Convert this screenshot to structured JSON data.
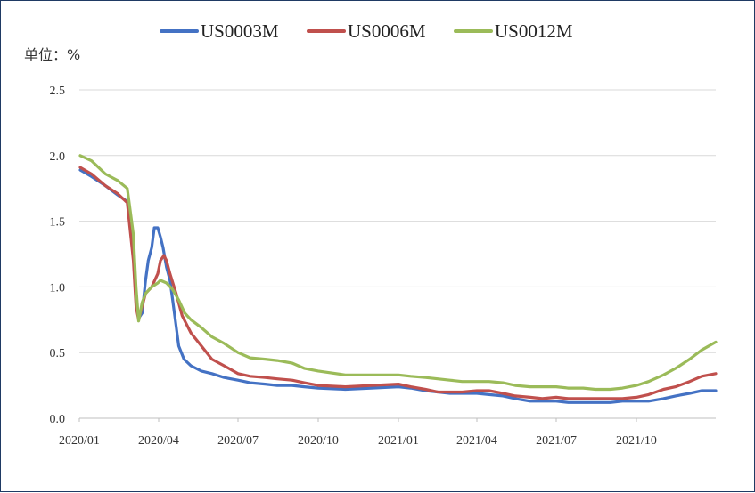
{
  "chart_data": {
    "type": "line",
    "unit_label": "单位：%",
    "ylim": [
      0,
      2.5
    ],
    "yticks": [
      "0.0",
      "0.5",
      "1.0",
      "1.5",
      "2.0",
      "2.5"
    ],
    "xlim": [
      "2020-01-01",
      "2021-12-31"
    ],
    "xticks": [
      {
        "date": "2020-01-01",
        "label": "2020/01"
      },
      {
        "date": "2020-04-01",
        "label": "2020/04"
      },
      {
        "date": "2020-07-01",
        "label": "2020/07"
      },
      {
        "date": "2020-10-01",
        "label": "2020/10"
      },
      {
        "date": "2021-01-01",
        "label": "2021/01"
      },
      {
        "date": "2021-04-01",
        "label": "2021/04"
      },
      {
        "date": "2021-07-01",
        "label": "2021/07"
      },
      {
        "date": "2021-10-01",
        "label": "2021/10"
      }
    ],
    "grid": true,
    "legend": "top",
    "series": [
      {
        "name": "US0003M",
        "color": "#4472c4",
        "points": [
          [
            "2020-01-02",
            1.89
          ],
          [
            "2020-01-15",
            1.84
          ],
          [
            "2020-01-31",
            1.77
          ],
          [
            "2020-02-14",
            1.7
          ],
          [
            "2020-02-25",
            1.65
          ],
          [
            "2020-03-03",
            1.3
          ],
          [
            "2020-03-06",
            0.9
          ],
          [
            "2020-03-09",
            0.76
          ],
          [
            "2020-03-13",
            0.8
          ],
          [
            "2020-03-17",
            1.05
          ],
          [
            "2020-03-20",
            1.2
          ],
          [
            "2020-03-24",
            1.3
          ],
          [
            "2020-03-27",
            1.45
          ],
          [
            "2020-03-31",
            1.45
          ],
          [
            "2020-04-03",
            1.38
          ],
          [
            "2020-04-06",
            1.3
          ],
          [
            "2020-04-10",
            1.15
          ],
          [
            "2020-04-14",
            1.05
          ],
          [
            "2020-04-17",
            0.9
          ],
          [
            "2020-04-21",
            0.7
          ],
          [
            "2020-04-24",
            0.55
          ],
          [
            "2020-04-30",
            0.45
          ],
          [
            "2020-05-08",
            0.4
          ],
          [
            "2020-05-20",
            0.36
          ],
          [
            "2020-06-01",
            0.34
          ],
          [
            "2020-06-15",
            0.31
          ],
          [
            "2020-07-01",
            0.29
          ],
          [
            "2020-07-15",
            0.27
          ],
          [
            "2020-08-01",
            0.26
          ],
          [
            "2020-08-15",
            0.25
          ],
          [
            "2020-09-01",
            0.25
          ],
          [
            "2020-09-15",
            0.24
          ],
          [
            "2020-10-01",
            0.23
          ],
          [
            "2020-11-01",
            0.22
          ],
          [
            "2020-12-01",
            0.23
          ],
          [
            "2021-01-01",
            0.24
          ],
          [
            "2021-01-15",
            0.23
          ],
          [
            "2021-02-01",
            0.21
          ],
          [
            "2021-02-15",
            0.2
          ],
          [
            "2021-03-01",
            0.19
          ],
          [
            "2021-03-15",
            0.19
          ],
          [
            "2021-04-01",
            0.19
          ],
          [
            "2021-04-15",
            0.18
          ],
          [
            "2021-05-01",
            0.17
          ],
          [
            "2021-05-15",
            0.15
          ],
          [
            "2021-06-01",
            0.13
          ],
          [
            "2021-06-15",
            0.13
          ],
          [
            "2021-07-01",
            0.13
          ],
          [
            "2021-07-15",
            0.12
          ],
          [
            "2021-08-01",
            0.12
          ],
          [
            "2021-08-15",
            0.12
          ],
          [
            "2021-09-01",
            0.12
          ],
          [
            "2021-09-15",
            0.13
          ],
          [
            "2021-10-01",
            0.13
          ],
          [
            "2021-10-15",
            0.13
          ],
          [
            "2021-11-01",
            0.15
          ],
          [
            "2021-11-15",
            0.17
          ],
          [
            "2021-12-01",
            0.19
          ],
          [
            "2021-12-15",
            0.21
          ],
          [
            "2021-12-31",
            0.21
          ]
        ]
      },
      {
        "name": "US0006M",
        "color": "#c0504d",
        "points": [
          [
            "2020-01-02",
            1.91
          ],
          [
            "2020-01-15",
            1.86
          ],
          [
            "2020-01-31",
            1.77
          ],
          [
            "2020-02-14",
            1.71
          ],
          [
            "2020-02-25",
            1.64
          ],
          [
            "2020-03-03",
            1.2
          ],
          [
            "2020-03-06",
            0.85
          ],
          [
            "2020-03-09",
            0.75
          ],
          [
            "2020-03-13",
            0.85
          ],
          [
            "2020-03-17",
            0.95
          ],
          [
            "2020-03-24",
            1.0
          ],
          [
            "2020-03-31",
            1.1
          ],
          [
            "2020-04-03",
            1.2
          ],
          [
            "2020-04-07",
            1.24
          ],
          [
            "2020-04-10",
            1.2
          ],
          [
            "2020-04-14",
            1.1
          ],
          [
            "2020-04-21",
            0.95
          ],
          [
            "2020-04-28",
            0.78
          ],
          [
            "2020-05-08",
            0.65
          ],
          [
            "2020-05-20",
            0.55
          ],
          [
            "2020-06-01",
            0.45
          ],
          [
            "2020-06-15",
            0.4
          ],
          [
            "2020-07-01",
            0.34
          ],
          [
            "2020-07-15",
            0.32
          ],
          [
            "2020-08-01",
            0.31
          ],
          [
            "2020-08-15",
            0.3
          ],
          [
            "2020-09-01",
            0.29
          ],
          [
            "2020-09-15",
            0.27
          ],
          [
            "2020-10-01",
            0.25
          ],
          [
            "2020-11-01",
            0.24
          ],
          [
            "2020-12-01",
            0.25
          ],
          [
            "2021-01-01",
            0.26
          ],
          [
            "2021-01-15",
            0.24
          ],
          [
            "2021-02-01",
            0.22
          ],
          [
            "2021-02-15",
            0.2
          ],
          [
            "2021-03-01",
            0.2
          ],
          [
            "2021-03-15",
            0.2
          ],
          [
            "2021-04-01",
            0.21
          ],
          [
            "2021-04-15",
            0.21
          ],
          [
            "2021-05-01",
            0.19
          ],
          [
            "2021-05-15",
            0.17
          ],
          [
            "2021-06-01",
            0.16
          ],
          [
            "2021-06-15",
            0.15
          ],
          [
            "2021-07-01",
            0.16
          ],
          [
            "2021-07-15",
            0.15
          ],
          [
            "2021-08-01",
            0.15
          ],
          [
            "2021-08-15",
            0.15
          ],
          [
            "2021-09-01",
            0.15
          ],
          [
            "2021-09-15",
            0.15
          ],
          [
            "2021-10-01",
            0.16
          ],
          [
            "2021-10-15",
            0.18
          ],
          [
            "2021-11-01",
            0.22
          ],
          [
            "2021-11-15",
            0.24
          ],
          [
            "2021-12-01",
            0.28
          ],
          [
            "2021-12-15",
            0.32
          ],
          [
            "2021-12-31",
            0.34
          ]
        ]
      },
      {
        "name": "US0012M",
        "color": "#9bbb59",
        "points": [
          [
            "2020-01-02",
            2.0
          ],
          [
            "2020-01-15",
            1.96
          ],
          [
            "2020-01-31",
            1.86
          ],
          [
            "2020-02-14",
            1.81
          ],
          [
            "2020-02-25",
            1.75
          ],
          [
            "2020-03-03",
            1.4
          ],
          [
            "2020-03-06",
            1.0
          ],
          [
            "2020-03-09",
            0.74
          ],
          [
            "2020-03-13",
            0.88
          ],
          [
            "2020-03-17",
            0.95
          ],
          [
            "2020-03-24",
            1.0
          ],
          [
            "2020-03-31",
            1.03
          ],
          [
            "2020-04-03",
            1.05
          ],
          [
            "2020-04-10",
            1.03
          ],
          [
            "2020-04-17",
            0.98
          ],
          [
            "2020-04-24",
            0.9
          ],
          [
            "2020-05-01",
            0.8
          ],
          [
            "2020-05-08",
            0.75
          ],
          [
            "2020-05-20",
            0.69
          ],
          [
            "2020-06-01",
            0.62
          ],
          [
            "2020-06-15",
            0.57
          ],
          [
            "2020-07-01",
            0.5
          ],
          [
            "2020-07-15",
            0.46
          ],
          [
            "2020-08-01",
            0.45
          ],
          [
            "2020-08-15",
            0.44
          ],
          [
            "2020-09-01",
            0.42
          ],
          [
            "2020-09-15",
            0.38
          ],
          [
            "2020-10-01",
            0.36
          ],
          [
            "2020-11-01",
            0.33
          ],
          [
            "2020-12-01",
            0.33
          ],
          [
            "2021-01-01",
            0.33
          ],
          [
            "2021-01-15",
            0.32
          ],
          [
            "2021-02-01",
            0.31
          ],
          [
            "2021-02-15",
            0.3
          ],
          [
            "2021-03-01",
            0.29
          ],
          [
            "2021-03-15",
            0.28
          ],
          [
            "2021-04-01",
            0.28
          ],
          [
            "2021-04-15",
            0.28
          ],
          [
            "2021-05-01",
            0.27
          ],
          [
            "2021-05-15",
            0.25
          ],
          [
            "2021-06-01",
            0.24
          ],
          [
            "2021-06-15",
            0.24
          ],
          [
            "2021-07-01",
            0.24
          ],
          [
            "2021-07-15",
            0.23
          ],
          [
            "2021-08-01",
            0.23
          ],
          [
            "2021-08-15",
            0.22
          ],
          [
            "2021-09-01",
            0.22
          ],
          [
            "2021-09-15",
            0.23
          ],
          [
            "2021-10-01",
            0.25
          ],
          [
            "2021-10-15",
            0.28
          ],
          [
            "2021-11-01",
            0.33
          ],
          [
            "2021-11-15",
            0.38
          ],
          [
            "2021-12-01",
            0.45
          ],
          [
            "2021-12-15",
            0.52
          ],
          [
            "2021-12-31",
            0.58
          ]
        ]
      }
    ]
  }
}
